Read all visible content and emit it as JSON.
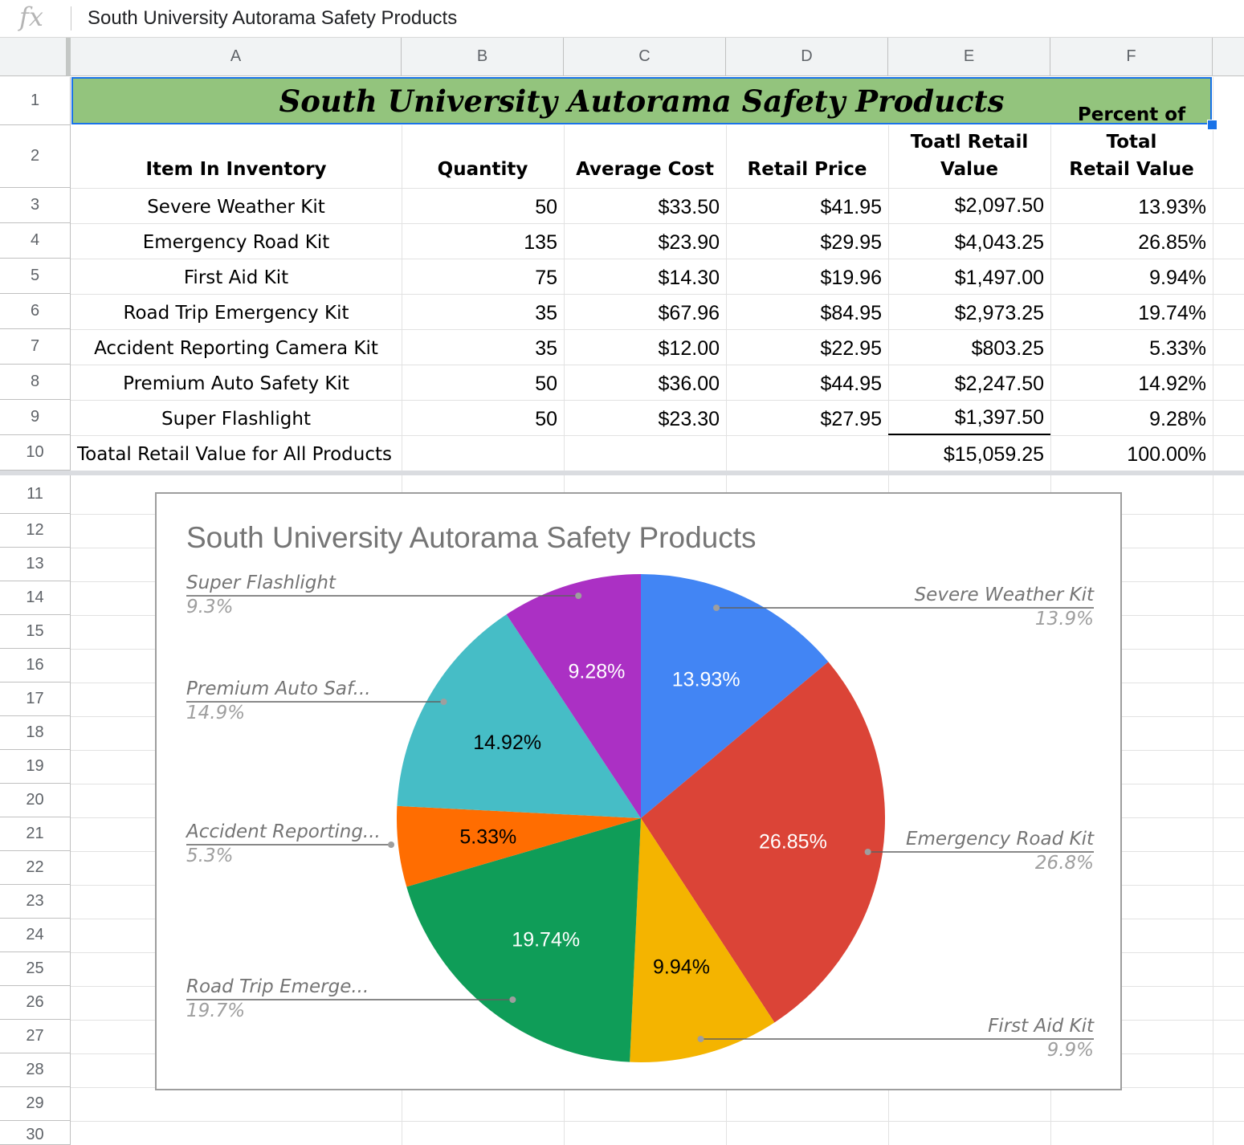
{
  "formula_bar": {
    "icon": "fx",
    "value": "South University Autorama Safety Products"
  },
  "columns": [
    "A",
    "B",
    "C",
    "D",
    "E",
    "F"
  ],
  "rows": [
    "1",
    "2",
    "3",
    "4",
    "5",
    "6",
    "7",
    "8",
    "9",
    "10",
    "11",
    "12",
    "13",
    "14",
    "15",
    "16",
    "17",
    "18",
    "19",
    "20",
    "21",
    "22",
    "23",
    "24",
    "25",
    "26",
    "27",
    "28",
    "29",
    "30"
  ],
  "sheet": {
    "title": "South University Autorama Safety Products",
    "headers": [
      [
        "Item In Inventory"
      ],
      [
        "Quantity"
      ],
      [
        "Average Cost"
      ],
      [
        "Retail Price"
      ],
      [
        "Toatl Retail",
        "Value"
      ],
      [
        "Percent of Total",
        "Retail Value"
      ]
    ],
    "items": [
      [
        "Severe Weather Kit",
        "50",
        "$33.50",
        "$41.95",
        "$2,097.50",
        "13.93%"
      ],
      [
        "Emergency Road Kit",
        "135",
        "$23.90",
        "$29.95",
        "$4,043.25",
        "26.85%"
      ],
      [
        "First Aid Kit",
        "75",
        "$14.30",
        "$19.96",
        "$1,497.00",
        "9.94%"
      ],
      [
        "Road Trip Emergency Kit",
        "35",
        "$67.96",
        "$84.95",
        "$2,973.25",
        "19.74%"
      ],
      [
        "Accident Reporting Camera Kit",
        "35",
        "$12.00",
        "$22.95",
        "$803.25",
        "5.33%"
      ],
      [
        "Premium Auto Safety Kit",
        "50",
        "$36.00",
        "$44.95",
        "$2,247.50",
        "14.92%"
      ],
      [
        "Super Flashlight",
        "50",
        "$23.30",
        "$27.95",
        "$1,397.50",
        "9.28%"
      ]
    ],
    "total": {
      "label": "Toatal Retail Value for All Products",
      "value": "$15,059.25",
      "percent": "100.00%"
    }
  },
  "colors": {
    "title_fill": "#93c47d",
    "selection": "#1a73e8"
  },
  "chart_data": {
    "type": "pie",
    "title": "South University Autorama Safety Products",
    "start": "top, clockwise",
    "slices": [
      {
        "name": "Severe Weather Kit",
        "value": 13.93,
        "inside": "13.93%",
        "legend_name": "Severe Weather Kit",
        "legend_pct": "13.9%",
        "color": "#4285f4",
        "label_color": "#ffffff"
      },
      {
        "name": "Emergency Road Kit",
        "value": 26.85,
        "inside": "26.85%",
        "legend_name": "Emergency Road Kit",
        "legend_pct": "26.8%",
        "color": "#db4437",
        "label_color": "#ffffff"
      },
      {
        "name": "First Aid Kit",
        "value": 9.94,
        "inside": "9.94%",
        "legend_name": "First Aid Kit",
        "legend_pct": "9.9%",
        "color": "#f4b400",
        "label_color": "#000000"
      },
      {
        "name": "Road Trip Emergency Kit",
        "value": 19.74,
        "inside": "19.74%",
        "legend_name": "Road Trip Emerge...",
        "legend_pct": "19.7%",
        "color": "#0f9d58",
        "label_color": "#ffffff"
      },
      {
        "name": "Accident Reporting Camera Kit",
        "value": 5.33,
        "inside": "5.33%",
        "legend_name": "Accident Reporting...",
        "legend_pct": "5.3%",
        "color": "#ff6d01",
        "label_color": "#000000"
      },
      {
        "name": "Premium Auto Safety Kit",
        "value": 14.92,
        "inside": "14.92%",
        "legend_name": "Premium Auto Saf...",
        "legend_pct": "14.9%",
        "color": "#46bdc6",
        "label_color": "#000000"
      },
      {
        "name": "Super Flashlight",
        "value": 9.28,
        "inside": "9.28%",
        "legend_name": "Super Flashlight",
        "legend_pct": "9.3%",
        "color": "#ab30c4",
        "label_color": "#ffffff"
      }
    ]
  }
}
